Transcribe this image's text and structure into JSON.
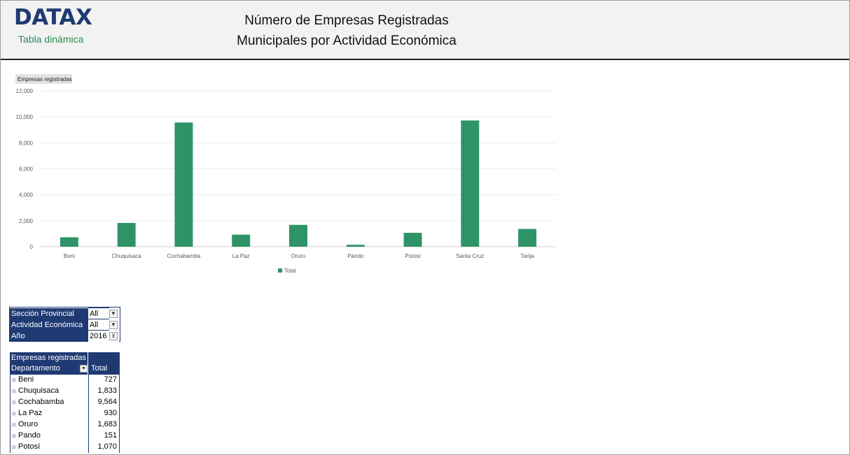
{
  "header": {
    "logo": "DATAX",
    "subtitle": "Tabla dinámica",
    "title_line1": "Número de Empresas Registradas",
    "title_line2": "Municipales por Actividad Económica"
  },
  "chart_data": {
    "type": "bar",
    "title": "",
    "field_button": "Empresas registradas",
    "categories": [
      "Beni",
      "Chuquisaca",
      "Cochabamba",
      "La Paz",
      "Oruro",
      "Pando",
      "Potosí",
      "Santa Cruz",
      "Tarija"
    ],
    "series": [
      {
        "name": "Total",
        "values": [
          727,
          1833,
          9564,
          930,
          1683,
          151,
          1070,
          9720,
          1370
        ]
      }
    ],
    "ylim": [
      0,
      12000
    ],
    "yticks": [
      "0",
      "2,000",
      "4,000",
      "6,000",
      "8,000",
      "10,000",
      "12,000"
    ],
    "ytick_values": [
      0,
      2000,
      4000,
      6000,
      8000,
      10000,
      12000
    ],
    "grid": true,
    "legend": "bottom",
    "bar_color": "#2e9468"
  },
  "filters": [
    {
      "label": "Sección Provincial",
      "value": "All",
      "icon": "dropdown-icon"
    },
    {
      "label": "Actividad Económica",
      "value": "All",
      "icon": "dropdown-icon"
    },
    {
      "label": "Año",
      "value": "2016",
      "icon": "filter-dropdown-icon"
    }
  ],
  "pivot": {
    "measure": "Empresas registradas",
    "row_header": "Departamento",
    "col_header": "Total",
    "rows": [
      {
        "dep": "Beni",
        "total": "727"
      },
      {
        "dep": "Chuquisaca",
        "total": "1,833"
      },
      {
        "dep": "Cochabamba",
        "total": "9,564"
      },
      {
        "dep": "La Paz",
        "total": "930"
      },
      {
        "dep": "Oruro",
        "total": "1,683"
      },
      {
        "dep": "Pando",
        "total": "151"
      },
      {
        "dep": "Potosí",
        "total": "1,070"
      }
    ]
  },
  "colors": {
    "navy": "#1f3a73",
    "green": "#2e9468"
  }
}
